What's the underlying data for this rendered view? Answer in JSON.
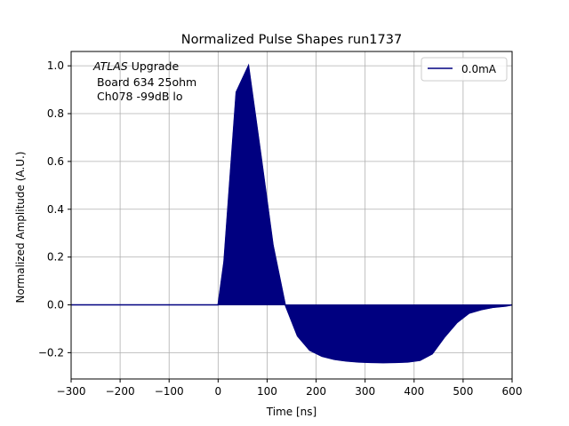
{
  "chart_data": {
    "type": "bar",
    "title": "Normalized Pulse Shapes run1737",
    "xlabel": "Time [ns]",
    "ylabel": "Normalized Amplitude (A.U.)",
    "xlim": [
      -300,
      600
    ],
    "ylim": [
      -0.31,
      1.06
    ],
    "xticks": [
      -300,
      -200,
      -100,
      0,
      100,
      200,
      300,
      400,
      500,
      600
    ],
    "xtick_labels": [
      "−300",
      "−200",
      "−100",
      "0",
      "100",
      "200",
      "300",
      "400",
      "500",
      "600"
    ],
    "yticks": [
      -0.2,
      0.0,
      0.2,
      0.4,
      0.6,
      0.8,
      1.0
    ],
    "ytick_labels": [
      "−0.2",
      "0.0",
      "0.2",
      "0.4",
      "0.6",
      "0.8",
      "1.0"
    ],
    "grid": true,
    "legend": {
      "position": "top-right",
      "entries": [
        "0.0mA"
      ]
    },
    "annotation": {
      "italic": "ATLAS",
      "line1_rest": " Upgrade",
      "line2": "Board 634 25ohm",
      "line3": "Ch078 -99dB lo"
    },
    "series": [
      {
        "name": "0.0mA",
        "color": "#000080",
        "points": [
          [
            -300,
            0.0
          ],
          [
            0,
            0.0
          ],
          [
            12,
            0.18
          ],
          [
            37,
            0.89
          ],
          [
            62,
            1.0
          ],
          [
            87,
            0.63
          ],
          [
            112,
            0.25
          ],
          [
            137,
            0.0
          ],
          [
            162,
            -0.13
          ],
          [
            187,
            -0.19
          ],
          [
            212,
            -0.215
          ],
          [
            237,
            -0.228
          ],
          [
            262,
            -0.235
          ],
          [
            287,
            -0.239
          ],
          [
            312,
            -0.241
          ],
          [
            337,
            -0.242
          ],
          [
            362,
            -0.241
          ],
          [
            387,
            -0.239
          ],
          [
            412,
            -0.232
          ],
          [
            437,
            -0.205
          ],
          [
            462,
            -0.135
          ],
          [
            487,
            -0.075
          ],
          [
            512,
            -0.035
          ],
          [
            537,
            -0.02
          ],
          [
            562,
            -0.01
          ],
          [
            587,
            -0.005
          ],
          [
            600,
            0.0
          ]
        ]
      }
    ]
  }
}
